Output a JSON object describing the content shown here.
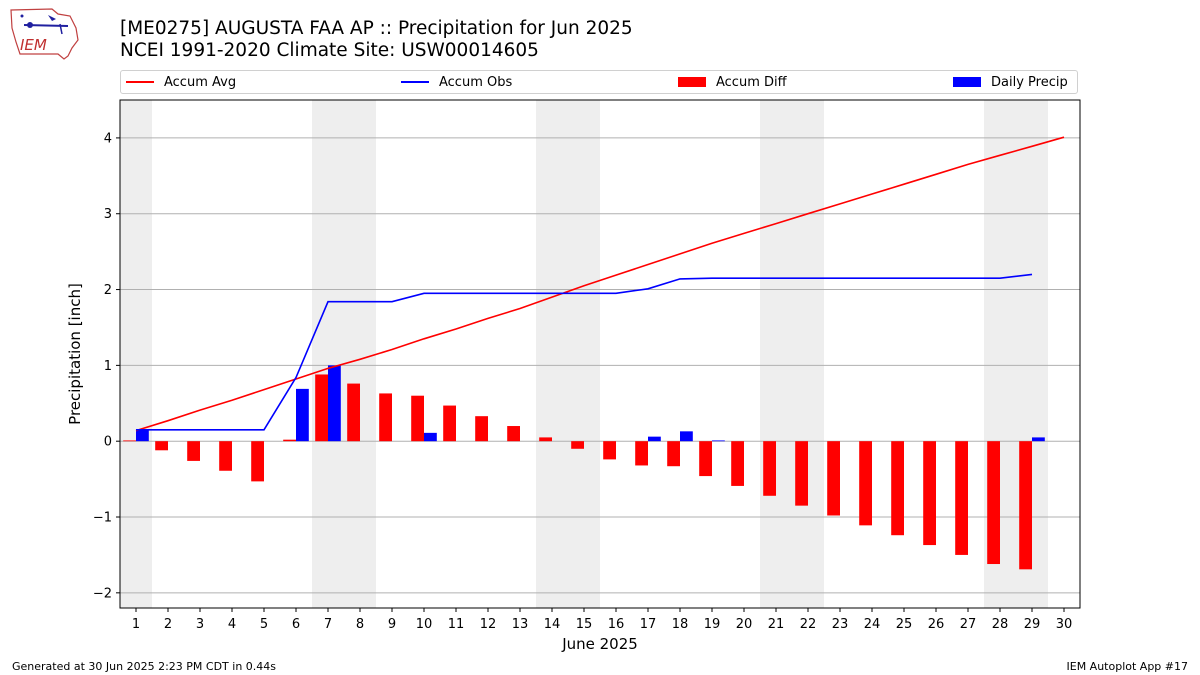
{
  "header": {
    "title": "[ME0275] AUGUSTA FAA AP :: Precipitation for Jun 2025",
    "subtitle": "NCEI 1991-2020 Climate Site: USW00014605",
    "logo_text": "IEM"
  },
  "legend": [
    {
      "label": "Accum Avg",
      "kind": "line",
      "color": "#ff0000"
    },
    {
      "label": "Accum Obs",
      "kind": "line",
      "color": "#0000ff"
    },
    {
      "label": "Accum Diff",
      "kind": "box",
      "color": "#ff0000"
    },
    {
      "label": "Daily Precip",
      "kind": "box",
      "color": "#0000ff"
    }
  ],
  "footer": {
    "left": "Generated at 30 Jun 2025 2:23 PM CDT in 0.44s",
    "right": "IEM Autoplot App #17"
  },
  "chart_data": {
    "type": "bar",
    "xlabel": "June 2025",
    "ylabel": "Precipitation [inch]",
    "ylim": [
      -2.2,
      4.5
    ],
    "xlim": [
      0.5,
      30.5
    ],
    "yticks": [
      -2,
      -1,
      0,
      1,
      2,
      3,
      4
    ],
    "ytick_labels": [
      "−2",
      "−1",
      "0",
      "1",
      "2",
      "3",
      "4"
    ],
    "x": [
      1,
      2,
      3,
      4,
      5,
      6,
      7,
      8,
      9,
      10,
      11,
      12,
      13,
      14,
      15,
      16,
      17,
      18,
      19,
      20,
      21,
      22,
      23,
      24,
      25,
      26,
      27,
      28,
      29,
      30
    ],
    "xtick_labels": [
      "1",
      "2",
      "3",
      "4",
      "5",
      "6",
      "7",
      "8",
      "9",
      "10",
      "11",
      "12",
      "13",
      "14",
      "15",
      "16",
      "17",
      "18",
      "19",
      "20",
      "21",
      "22",
      "23",
      "24",
      "25",
      "26",
      "27",
      "28",
      "29",
      "30"
    ],
    "weekend_shading": [
      [
        0.5,
        1.5
      ],
      [
        6.5,
        8.5
      ],
      [
        13.5,
        15.5
      ],
      [
        20.5,
        22.5
      ],
      [
        27.5,
        29.5
      ]
    ],
    "grid": "horizontal",
    "legend_position": "top",
    "series": [
      {
        "name": "Accum Avg",
        "type": "line",
        "color": "#ff0000",
        "x": [
          1,
          2,
          3,
          4,
          5,
          6,
          7,
          8,
          9,
          10,
          11,
          12,
          13,
          14,
          15,
          16,
          17,
          18,
          19,
          20,
          21,
          22,
          23,
          24,
          25,
          26,
          27,
          28,
          29,
          30
        ],
        "values": [
          0.14,
          0.27,
          0.41,
          0.54,
          0.68,
          0.82,
          0.96,
          1.08,
          1.21,
          1.35,
          1.48,
          1.62,
          1.75,
          1.9,
          2.05,
          2.19,
          2.33,
          2.47,
          2.61,
          2.74,
          2.87,
          3.0,
          3.13,
          3.26,
          3.39,
          3.52,
          3.65,
          3.77,
          3.89,
          4.01
        ]
      },
      {
        "name": "Accum Obs",
        "type": "line",
        "color": "#0000ff",
        "x": [
          1,
          2,
          3,
          4,
          5,
          6,
          7,
          8,
          9,
          10,
          11,
          12,
          13,
          14,
          15,
          16,
          17,
          18,
          19,
          20,
          21,
          22,
          23,
          24,
          25,
          26,
          27,
          28,
          29
        ],
        "values": [
          0.15,
          0.15,
          0.15,
          0.15,
          0.15,
          0.84,
          1.84,
          1.84,
          1.84,
          1.95,
          1.95,
          1.95,
          1.95,
          1.95,
          1.95,
          1.95,
          2.01,
          2.14,
          2.15,
          2.15,
          2.15,
          2.15,
          2.15,
          2.15,
          2.15,
          2.15,
          2.15,
          2.15,
          2.2
        ]
      },
      {
        "name": "Accum Diff",
        "type": "bar",
        "color": "#ff0000",
        "x": [
          1,
          2,
          3,
          4,
          5,
          6,
          7,
          8,
          9,
          10,
          11,
          12,
          13,
          14,
          15,
          16,
          17,
          18,
          19,
          20,
          21,
          22,
          23,
          24,
          25,
          26,
          27,
          28,
          29
        ],
        "values": [
          0.01,
          -0.12,
          -0.26,
          -0.39,
          -0.53,
          0.02,
          0.88,
          0.76,
          0.63,
          0.6,
          0.47,
          0.33,
          0.2,
          0.05,
          -0.1,
          -0.24,
          -0.32,
          -0.33,
          -0.46,
          -0.59,
          -0.72,
          -0.85,
          -0.98,
          -1.11,
          -1.24,
          -1.37,
          -1.5,
          -1.62,
          -1.69
        ]
      },
      {
        "name": "Daily Precip",
        "type": "bar",
        "color": "#0000ff",
        "x": [
          1,
          6,
          7,
          10,
          17,
          18,
          19,
          29
        ],
        "values": [
          0.15,
          0.69,
          1.0,
          0.11,
          0.06,
          0.13,
          0.01,
          0.05
        ]
      }
    ]
  }
}
